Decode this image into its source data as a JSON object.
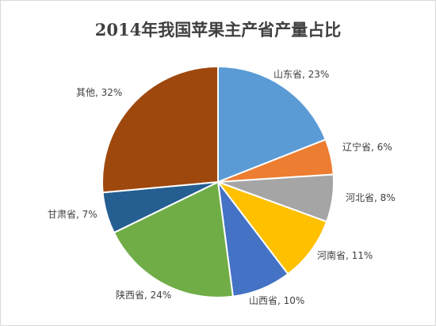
{
  "chart_data": {
    "type": "pie",
    "title": "2014年我国苹果主产省产量占比",
    "slices": [
      {
        "name": "山东省",
        "value": 23,
        "label": "山东省, 23%",
        "color": "#5b9bd5"
      },
      {
        "name": "辽宁省",
        "value": 6,
        "label": "辽宁省, 6%",
        "color": "#ed7d31"
      },
      {
        "name": "河北省",
        "value": 8,
        "label": "河北省, 8%",
        "color": "#a5a5a5"
      },
      {
        "name": "河南省",
        "value": 11,
        "label": "河南省, 11%",
        "color": "#ffc000"
      },
      {
        "name": "山西省",
        "value": 10,
        "label": "山西省, 10%",
        "color": "#4472c4"
      },
      {
        "name": "陕西省",
        "value": 24,
        "label": "陕西省, 24%",
        "color": "#70ad47"
      },
      {
        "name": "甘肃省",
        "value": 7,
        "label": "甘肃省, 7%",
        "color": "#255e91"
      },
      {
        "name": "其他",
        "value": 32,
        "label": "其他, 32%",
        "color": "#9e480e"
      }
    ],
    "legend": "none",
    "start_angle_deg": 0,
    "direction": "clockwise"
  }
}
